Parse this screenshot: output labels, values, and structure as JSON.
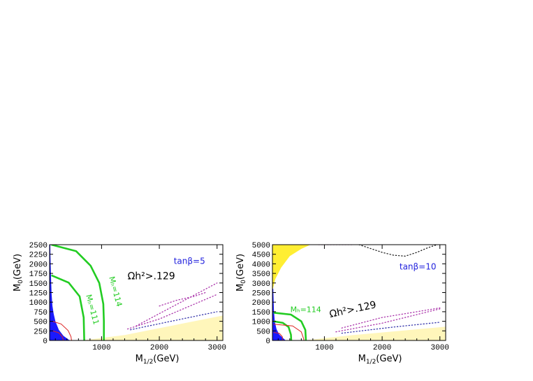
{
  "chart_data": [
    {
      "type": "area",
      "xlabel": "M_{1/2}(GeV)",
      "ylabel": "M_0(GeV)",
      "xlim": [
        100,
        3100
      ],
      "ylim": [
        0,
        2500
      ],
      "xticks": [
        1000,
        2000,
        3000
      ],
      "yticks": [
        0,
        250,
        500,
        750,
        1000,
        1250,
        1500,
        1750,
        2000,
        2250,
        2500
      ],
      "annotations": [
        {
          "text": "tanβ=5",
          "color": "#2222dd",
          "x": 2250,
          "y": 2000
        },
        {
          "text": "Ωh²>.129",
          "color": "#000000",
          "x": 1450,
          "y": 1600
        },
        {
          "text": "Mₕ=114",
          "color": "#22cc22",
          "x": 1130,
          "y": 1650,
          "rotation": 75
        },
        {
          "text": "Mₕ=111",
          "color": "#22cc22",
          "x": 730,
          "y": 1180,
          "rotation": 75
        }
      ],
      "series": [
        {
          "role": "excluded-region-blue",
          "color": "#1a1aff",
          "points": [
            [
              100,
              0
            ],
            [
              100,
              2500
            ],
            [
              112,
              2500
            ],
            [
              115,
              2200
            ],
            [
              125,
              1600
            ],
            [
              135,
              1200
            ],
            [
              150,
              900
            ],
            [
              170,
              700
            ],
            [
              200,
              500
            ],
            [
              260,
              280
            ],
            [
              340,
              120
            ],
            [
              430,
              20
            ],
            [
              460,
              0
            ]
          ]
        },
        {
          "role": "excluded-region-yellow",
          "color": "#fff6bb",
          "points": [
            [
              100,
              0
            ],
            [
              3100,
              0
            ],
            [
              3100,
              650
            ],
            [
              1400,
              140
            ],
            [
              700,
              10
            ]
          ]
        },
        {
          "role": "higgs-mass-contour",
          "color": "#22cc22",
          "points": [
            [
              130,
              2500
            ],
            [
              560,
              2330
            ],
            [
              810,
              1950
            ],
            [
              960,
              1500
            ],
            [
              1030,
              950
            ],
            [
              1040,
              500
            ],
            [
              1040,
              0
            ]
          ]
        },
        {
          "role": "higgs-mass-contour",
          "color": "#22cc22",
          "points": [
            [
              130,
              1700
            ],
            [
              430,
              1510
            ],
            [
              620,
              1150
            ],
            [
              690,
              600
            ],
            [
              700,
              0
            ]
          ]
        },
        {
          "role": "red-contour",
          "color": "#dd2222",
          "points": [
            [
              150,
              500
            ],
            [
              300,
              430
            ],
            [
              420,
              260
            ],
            [
              470,
              100
            ],
            [
              480,
              0
            ]
          ]
        },
        {
          "role": "red-contour",
          "color": "#dd2222",
          "points": [
            [
              150,
              250
            ],
            [
              260,
              200
            ],
            [
              320,
              100
            ],
            [
              340,
              0
            ]
          ]
        },
        {
          "role": "dotted-boundary",
          "color": "#aa33aa",
          "points": [
            [
              1450,
              300
            ],
            [
              2000,
              560
            ],
            [
              2500,
              880
            ],
            [
              3000,
              1200
            ]
          ]
        },
        {
          "role": "dotted-boundary",
          "color": "#aa33aa",
          "points": [
            [
              1600,
              380
            ],
            [
              2000,
              700
            ],
            [
              2500,
              1100
            ],
            [
              3000,
              1500
            ]
          ]
        },
        {
          "role": "dotted-boundary",
          "color": "#3333aa",
          "points": [
            [
              1500,
              280
            ],
            [
              2200,
              500
            ],
            [
              3000,
              750
            ]
          ]
        },
        {
          "role": "dotted-boundary",
          "color": "#aa33aa",
          "points": [
            [
              2000,
              900
            ],
            [
              2300,
              1050
            ],
            [
              2600,
              1150
            ],
            [
              2800,
              1250
            ]
          ]
        }
      ]
    },
    {
      "type": "area",
      "xlabel": "M_{1/2}(GeV)",
      "ylabel": "M_0(GeV)",
      "xlim": [
        100,
        3100
      ],
      "ylim": [
        0,
        5000
      ],
      "xticks": [
        1000,
        2000,
        3000
      ],
      "yticks": [
        0,
        500,
        1000,
        1500,
        2000,
        2500,
        3000,
        3500,
        4000,
        4500,
        5000
      ],
      "annotations": [
        {
          "text": "tanβ=10",
          "color": "#2222dd",
          "x": 2300,
          "y": 3700
        },
        {
          "text": "Ωh²>.129",
          "color": "#000000",
          "x": 1100,
          "y": 1200,
          "rotation": -12
        },
        {
          "text": "Mₕ=114",
          "color": "#22cc22",
          "x": 410,
          "y": 1480
        }
      ],
      "series": [
        {
          "role": "excluded-region-blue",
          "color": "#1a1aff",
          "points": [
            [
              100,
              0
            ],
            [
              100,
              2700
            ],
            [
              115,
              2700
            ],
            [
              125,
              1600
            ],
            [
              140,
              1000
            ],
            [
              170,
              600
            ],
            [
              220,
              300
            ],
            [
              300,
              80
            ],
            [
              330,
              0
            ]
          ]
        },
        {
          "role": "excluded-region-yellow-top",
          "color": "#ffee33",
          "points": [
            [
              100,
              2600
            ],
            [
              100,
              5000
            ],
            [
              760,
              5000
            ],
            [
              600,
              4780
            ],
            [
              400,
              4400
            ],
            [
              250,
              3800
            ],
            [
              150,
              3200
            ]
          ]
        },
        {
          "role": "excluded-region-yellow",
          "color": "#fff6bb",
          "points": [
            [
              100,
              0
            ],
            [
              3100,
              0
            ],
            [
              3100,
              720
            ],
            [
              1500,
              280
            ],
            [
              700,
              20
            ]
          ]
        },
        {
          "role": "higgs-mass-contour",
          "color": "#22cc22",
          "points": [
            [
              120,
              1450
            ],
            [
              420,
              1350
            ],
            [
              600,
              1000
            ],
            [
              670,
              550
            ],
            [
              680,
              0
            ]
          ]
        },
        {
          "role": "higgs-mass-contour",
          "color": "#22cc22",
          "points": [
            [
              120,
              1000
            ],
            [
              280,
              920
            ],
            [
              380,
              700
            ],
            [
              420,
              300
            ],
            [
              425,
              0
            ]
          ]
        },
        {
          "role": "red-contour",
          "color": "#dd2222",
          "points": [
            [
              120,
              850
            ],
            [
              450,
              760
            ],
            [
              600,
              450
            ],
            [
              640,
              100
            ],
            [
              645,
              0
            ]
          ]
        },
        {
          "role": "red-contour",
          "color": "#dd2222",
          "points": [
            [
              120,
              420
            ],
            [
              220,
              370
            ],
            [
              270,
              200
            ],
            [
              280,
              0
            ]
          ]
        },
        {
          "role": "dotted-boundary",
          "color": "#aa33aa",
          "points": [
            [
              1200,
              450
            ],
            [
              2000,
              900
            ],
            [
              3000,
              1650
            ]
          ]
        },
        {
          "role": "dotted-boundary",
          "color": "#3333aa",
          "points": [
            [
              1300,
              380
            ],
            [
              2200,
              700
            ],
            [
              3000,
              950
            ]
          ]
        },
        {
          "role": "dotted-boundary",
          "color": "#aa33aa",
          "points": [
            [
              1300,
              650
            ],
            [
              2000,
              1200
            ],
            [
              2500,
              1450
            ],
            [
              3000,
              1700
            ]
          ]
        },
        {
          "role": "dotted-boundary-top",
          "color": "#222222",
          "points": [
            [
              1600,
              5000
            ],
            [
              1800,
              4800
            ],
            [
              2000,
              4600
            ],
            [
              2200,
              4450
            ],
            [
              2400,
              4400
            ],
            [
              2600,
              4600
            ],
            [
              2800,
              4850
            ],
            [
              2950,
              5000
            ]
          ]
        },
        {
          "role": "dotted-boundary-top",
          "color": "#aa33aa",
          "points": [
            [
              900,
              5000
            ],
            [
              1500,
              5000
            ]
          ]
        }
      ]
    }
  ]
}
